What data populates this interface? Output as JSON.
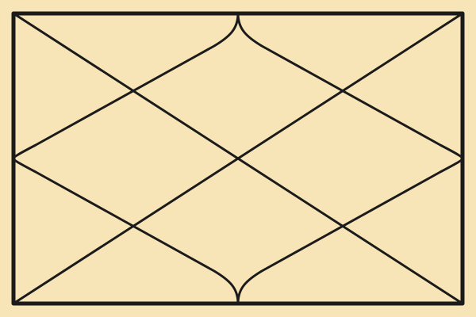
{
  "diagram": {
    "type": "north-indian-style-grid-chart",
    "colors": {
      "background": "#f8e5b7",
      "line": "#1b1b1b"
    },
    "houses": 12,
    "text": []
  }
}
